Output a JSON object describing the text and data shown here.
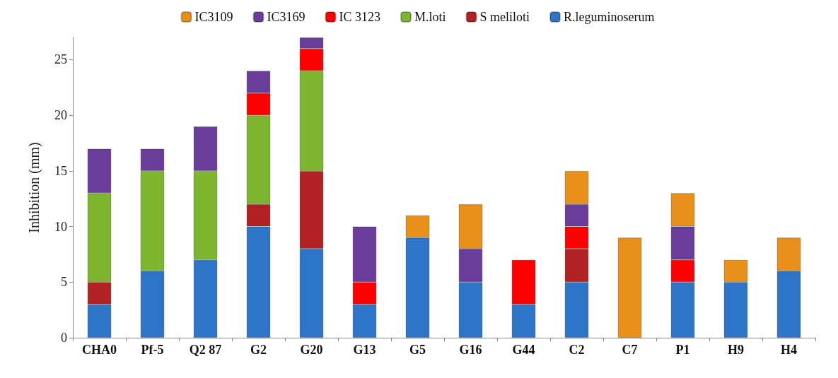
{
  "chart_data": {
    "type": "bar",
    "stacked": true,
    "ylabel": "Inhibition (mm)",
    "categories": [
      "CHA0",
      "Pf-5",
      "Q2 87",
      "G2",
      "G20",
      "G13",
      "G5",
      "G16",
      "G44",
      "C2",
      "C7",
      "P1",
      "H9",
      "H4"
    ],
    "series": [
      {
        "name": "R.leguminoserum",
        "color": "#2e75c8",
        "values": [
          3,
          6,
          7,
          10,
          8,
          3,
          9,
          5,
          3,
          5,
          null,
          5,
          5,
          6
        ]
      },
      {
        "name": "S meliloti",
        "color": "#b22222",
        "values": [
          2,
          null,
          null,
          2,
          7,
          null,
          null,
          null,
          null,
          3,
          null,
          null,
          null,
          null
        ]
      },
      {
        "name": "M.loti",
        "color": "#7db52f",
        "values": [
          8,
          9,
          8,
          8,
          9,
          null,
          null,
          null,
          null,
          null,
          null,
          null,
          null,
          null
        ]
      },
      {
        "name": "IC 3123",
        "color": "#ff0000",
        "values": [
          null,
          null,
          null,
          2,
          2,
          2,
          null,
          null,
          4,
          2,
          null,
          2,
          null,
          null
        ]
      },
      {
        "name": "IC3169",
        "color": "#6a3d9a",
        "values": [
          4,
          2,
          4,
          2,
          1,
          5,
          null,
          3,
          null,
          2,
          null,
          3,
          null,
          null
        ]
      },
      {
        "name": "IC3109",
        "color": "#e8901a",
        "values": [
          null,
          null,
          null,
          null,
          null,
          null,
          2,
          4,
          null,
          3,
          9,
          3,
          2,
          3
        ]
      }
    ],
    "ylim": [
      0,
      27
    ],
    "yticks": [
      0,
      5,
      10,
      15,
      20,
      25
    ],
    "grid": false,
    "legend": "top"
  }
}
